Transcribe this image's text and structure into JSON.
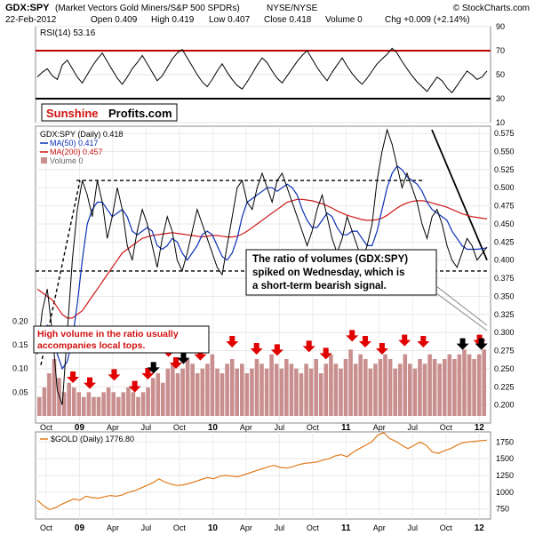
{
  "header": {
    "symbol": "GDX:SPY",
    "name": "(Market Vectors Gold Miners/S&P 500 SPDRs)",
    "exchange": "NYSE/NYSE",
    "copyright": "© StockCharts.com",
    "date": "22-Feb-2012",
    "open": "Open 0.409",
    "high": "High 0.419",
    "low": "Low 0.407",
    "close": "Close 0.418",
    "volume": "Volume 0",
    "chg": "Chg +0.009 (+2.14%)"
  },
  "colors": {
    "price_line": "#000000",
    "red_bar": "#e31a1c",
    "ma50": "#0b30b4",
    "ma200": "#d01818",
    "volume_bar": "#c98f8f",
    "gold": "#e07a1a",
    "arrow_red": "#e00000",
    "arrow_black": "#000000",
    "rsi_line": "#c00000"
  },
  "branding": {
    "sunshine": "Sunshine",
    "profits": "Profits.com"
  },
  "annotations": {
    "volume_note": [
      "The ratio of volumes (GDX:SPY)",
      "spiked on Wednesday, which is",
      "a short-term bearish signal."
    ],
    "high_volume_note": [
      "High volume in the ratio usually",
      "accompanies local tops."
    ]
  },
  "chart_data": [
    {
      "type": "line",
      "title": "RSI(14) 53.16",
      "ylim": [
        10,
        90
      ],
      "y_ticks": [
        "90",
        "70",
        "50",
        "30",
        "10"
      ],
      "reference_lines": [
        70,
        30
      ],
      "series": [
        {
          "name": "RSI(14)",
          "values": [
            48,
            52,
            55,
            49,
            46,
            58,
            62,
            55,
            48,
            43,
            50,
            57,
            63,
            68,
            61,
            54,
            47,
            42,
            48,
            55,
            60,
            66,
            59,
            52,
            45,
            49,
            56,
            63,
            68,
            71,
            64,
            57,
            50,
            44,
            40,
            46,
            53,
            59,
            52,
            46,
            41,
            38,
            44,
            51,
            58,
            64,
            60,
            53,
            47,
            43,
            49,
            55,
            61,
            66,
            70,
            63,
            56,
            50,
            45,
            52,
            58,
            64,
            57,
            51,
            46,
            42,
            47,
            53,
            59,
            63,
            67,
            72,
            68,
            61,
            55,
            49,
            44,
            40,
            36,
            42,
            48,
            45,
            39,
            35,
            41,
            47,
            53,
            50,
            46,
            48,
            53.16
          ]
        }
      ]
    },
    {
      "type": "line",
      "title": "GDX:SPY (Daily) 0.418",
      "ylim": [
        0.175,
        0.585
      ],
      "y_ticks": [
        "0.575",
        "0.550",
        "0.525",
        "0.500",
        "0.475",
        "0.450",
        "0.425",
        "0.400",
        "0.375",
        "0.350",
        "0.325",
        "0.300",
        "0.275",
        "0.250",
        "0.225",
        "0.200"
      ],
      "x_ticks": [
        "Oct",
        "09",
        "Apr",
        "Jul",
        "Oct",
        "10",
        "Apr",
        "Jul",
        "Oct",
        "11",
        "Apr",
        "Jul",
        "Oct",
        "12"
      ],
      "legend": [
        "GDX:SPY (Daily) 0.418",
        "MA(50) 0.417",
        "MA(200) 0.457",
        "Volume 0"
      ],
      "support_resistance": [
        0.51,
        0.385
      ],
      "series": [
        {
          "name": "GDX:SPY",
          "values": [
            0.27,
            0.33,
            0.36,
            0.3,
            0.22,
            0.2,
            0.3,
            0.4,
            0.47,
            0.51,
            0.49,
            0.46,
            0.51,
            0.48,
            0.43,
            0.46,
            0.5,
            0.47,
            0.42,
            0.4,
            0.44,
            0.47,
            0.45,
            0.42,
            0.39,
            0.43,
            0.46,
            0.44,
            0.4,
            0.385,
            0.41,
            0.44,
            0.47,
            0.45,
            0.43,
            0.41,
            0.39,
            0.38,
            0.42,
            0.46,
            0.5,
            0.51,
            0.48,
            0.47,
            0.5,
            0.52,
            0.5,
            0.48,
            0.51,
            0.52,
            0.5,
            0.48,
            0.46,
            0.44,
            0.42,
            0.44,
            0.47,
            0.49,
            0.46,
            0.43,
            0.41,
            0.43,
            0.46,
            0.44,
            0.42,
            0.4,
            0.42,
            0.45,
            0.51,
            0.55,
            0.58,
            0.56,
            0.53,
            0.5,
            0.52,
            0.5,
            0.48,
            0.45,
            0.43,
            0.46,
            0.47,
            0.45,
            0.42,
            0.4,
            0.39,
            0.41,
            0.43,
            0.42,
            0.4,
            0.409,
            0.418
          ]
        },
        {
          "name": "MA(50)",
          "values": [
            0.29,
            0.3,
            0.31,
            0.3,
            0.27,
            0.25,
            0.26,
            0.29,
            0.34,
            0.4,
            0.45,
            0.47,
            0.48,
            0.48,
            0.47,
            0.46,
            0.465,
            0.47,
            0.46,
            0.44,
            0.435,
            0.44,
            0.445,
            0.44,
            0.42,
            0.415,
            0.42,
            0.43,
            0.425,
            0.41,
            0.4,
            0.41,
            0.42,
            0.435,
            0.44,
            0.435,
            0.42,
            0.405,
            0.4,
            0.41,
            0.43,
            0.46,
            0.48,
            0.485,
            0.49,
            0.495,
            0.5,
            0.5,
            0.495,
            0.5,
            0.505,
            0.5,
            0.49,
            0.47,
            0.455,
            0.445,
            0.445,
            0.455,
            0.465,
            0.46,
            0.445,
            0.435,
            0.435,
            0.44,
            0.44,
            0.43,
            0.42,
            0.42,
            0.44,
            0.47,
            0.5,
            0.52,
            0.53,
            0.525,
            0.515,
            0.51,
            0.505,
            0.495,
            0.48,
            0.47,
            0.465,
            0.46,
            0.455,
            0.44,
            0.43,
            0.42,
            0.415,
            0.415,
            0.415,
            0.416,
            0.417
          ]
        },
        {
          "name": "MA(200)",
          "values": [
            0.36,
            0.355,
            0.35,
            0.345,
            0.335,
            0.325,
            0.32,
            0.32,
            0.325,
            0.33,
            0.34,
            0.35,
            0.36,
            0.37,
            0.38,
            0.39,
            0.4,
            0.41,
            0.415,
            0.42,
            0.425,
            0.43,
            0.432,
            0.434,
            0.435,
            0.436,
            0.437,
            0.438,
            0.437,
            0.436,
            0.435,
            0.434,
            0.433,
            0.432,
            0.433,
            0.434,
            0.434,
            0.433,
            0.432,
            0.432,
            0.433,
            0.436,
            0.44,
            0.445,
            0.45,
            0.455,
            0.46,
            0.465,
            0.47,
            0.475,
            0.48,
            0.482,
            0.484,
            0.484,
            0.483,
            0.482,
            0.48,
            0.478,
            0.475,
            0.472,
            0.468,
            0.465,
            0.462,
            0.46,
            0.458,
            0.456,
            0.455,
            0.455,
            0.456,
            0.458,
            0.462,
            0.467,
            0.472,
            0.476,
            0.479,
            0.481,
            0.482,
            0.482,
            0.481,
            0.479,
            0.477,
            0.475,
            0.473,
            0.47,
            0.467,
            0.464,
            0.462,
            0.46,
            0.459,
            0.458,
            0.457
          ]
        }
      ]
    },
    {
      "type": "bar",
      "title": "Volume",
      "ylim": [
        0,
        0.21
      ],
      "y_ticks": [
        "0.20",
        "0.15",
        "0.10",
        "0.05"
      ],
      "values": [
        0.04,
        0.06,
        0.09,
        0.12,
        0.08,
        0.05,
        0.07,
        0.06,
        0.05,
        0.04,
        0.05,
        0.04,
        0.04,
        0.05,
        0.06,
        0.05,
        0.04,
        0.05,
        0.06,
        0.05,
        0.04,
        0.05,
        0.06,
        0.08,
        0.09,
        0.07,
        0.1,
        0.11,
        0.09,
        0.1,
        0.12,
        0.11,
        0.09,
        0.1,
        0.11,
        0.13,
        0.1,
        0.09,
        0.11,
        0.12,
        0.1,
        0.11,
        0.09,
        0.1,
        0.12,
        0.11,
        0.1,
        0.13,
        0.11,
        0.1,
        0.12,
        0.11,
        0.1,
        0.09,
        0.11,
        0.1,
        0.12,
        0.09,
        0.11,
        0.13,
        0.11,
        0.1,
        0.12,
        0.14,
        0.11,
        0.13,
        0.12,
        0.1,
        0.11,
        0.12,
        0.13,
        0.12,
        0.1,
        0.11,
        0.13,
        0.11,
        0.1,
        0.12,
        0.11,
        0.13,
        0.12,
        0.11,
        0.12,
        0.13,
        0.12,
        0.13,
        0.14,
        0.13,
        0.12,
        0.13,
        0.14
      ],
      "red_arrow_positions": [
        19,
        28,
        41,
        52,
        59,
        70,
        74,
        87,
        104,
        117,
        128,
        145,
        154,
        168,
        175,
        184,
        196,
        206,
        237,
        236
      ],
      "black_arrow_positions": [
        62,
        78,
        227,
        237
      ]
    },
    {
      "type": "line",
      "title": "$GOLD (Daily) 1776.80",
      "ylim": [
        600,
        1900
      ],
      "y_ticks": [
        "1750",
        "1500",
        "1250",
        "1000",
        "750"
      ],
      "x_ticks": [
        "Oct",
        "09",
        "Apr",
        "Jul",
        "Oct",
        "10",
        "Apr",
        "Jul",
        "Oct",
        "11",
        "Apr",
        "Jul",
        "Oct",
        "12"
      ],
      "series": [
        {
          "name": "$GOLD",
          "values": [
            880,
            800,
            740,
            770,
            820,
            860,
            900,
            880,
            940,
            920,
            910,
            930,
            950,
            940,
            960,
            1000,
            1020,
            1060,
            1100,
            1140,
            1200,
            1150,
            1120,
            1100,
            1110,
            1130,
            1160,
            1190,
            1220,
            1200,
            1240,
            1250,
            1240,
            1230,
            1260,
            1290,
            1320,
            1350,
            1380,
            1400,
            1370,
            1360,
            1380,
            1410,
            1430,
            1440,
            1450,
            1480,
            1500,
            1540,
            1560,
            1530,
            1600,
            1650,
            1700,
            1750,
            1850,
            1890,
            1800,
            1760,
            1700,
            1650,
            1700,
            1750,
            1700,
            1600,
            1580,
            1620,
            1650,
            1700,
            1740,
            1750,
            1760,
            1770,
            1776.8
          ]
        }
      ]
    }
  ]
}
